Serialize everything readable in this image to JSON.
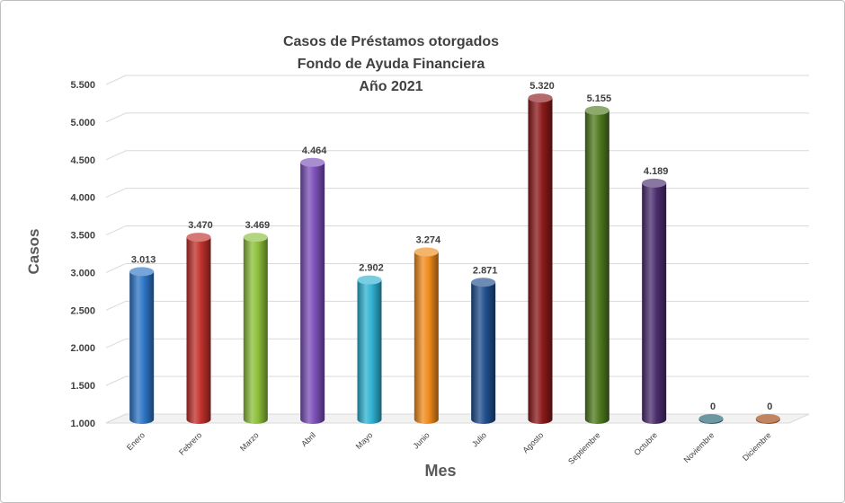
{
  "chart_data": {
    "type": "bar",
    "title": [
      "Casos de Préstamos otorgados",
      "Fondo de Ayuda Financiera",
      "Año 2021"
    ],
    "xlabel": "Mes",
    "ylabel": "Casos",
    "ylim": [
      1000,
      5500
    ],
    "yticks": [
      "1.000",
      "1.500",
      "2.000",
      "2.500",
      "3.000",
      "3.500",
      "4.000",
      "4.500",
      "5.000",
      "5.500"
    ],
    "ytick_values": [
      1000,
      1500,
      2000,
      2500,
      3000,
      3500,
      4000,
      4500,
      5000,
      5500
    ],
    "grid": true,
    "categories": [
      "Enero",
      "Febrero",
      "Marzo",
      "Abril",
      "Mayo",
      "Junio",
      "Julio",
      "Agosto",
      "Septiembre",
      "Octubre",
      "Noviembre",
      "Diciembre"
    ],
    "values": [
      3013,
      3470,
      3469,
      4464,
      2902,
      3274,
      2871,
      5320,
      5155,
      4189,
      0,
      0
    ],
    "data_labels": [
      "3.013",
      "3.470",
      "3.469",
      "4.464",
      "2.902",
      "3.274",
      "2.871",
      "5.320",
      "5.155",
      "4.189",
      "0",
      "0"
    ],
    "colors": [
      "#2e75c6",
      "#c0302b",
      "#8cbf3a",
      "#7b4fb8",
      "#2fb2d2",
      "#f08b1c",
      "#1f4e8c",
      "#8b1a1a",
      "#4f7a1f",
      "#4b2d6e",
      "#1f5f6e",
      "#a0420f"
    ]
  }
}
